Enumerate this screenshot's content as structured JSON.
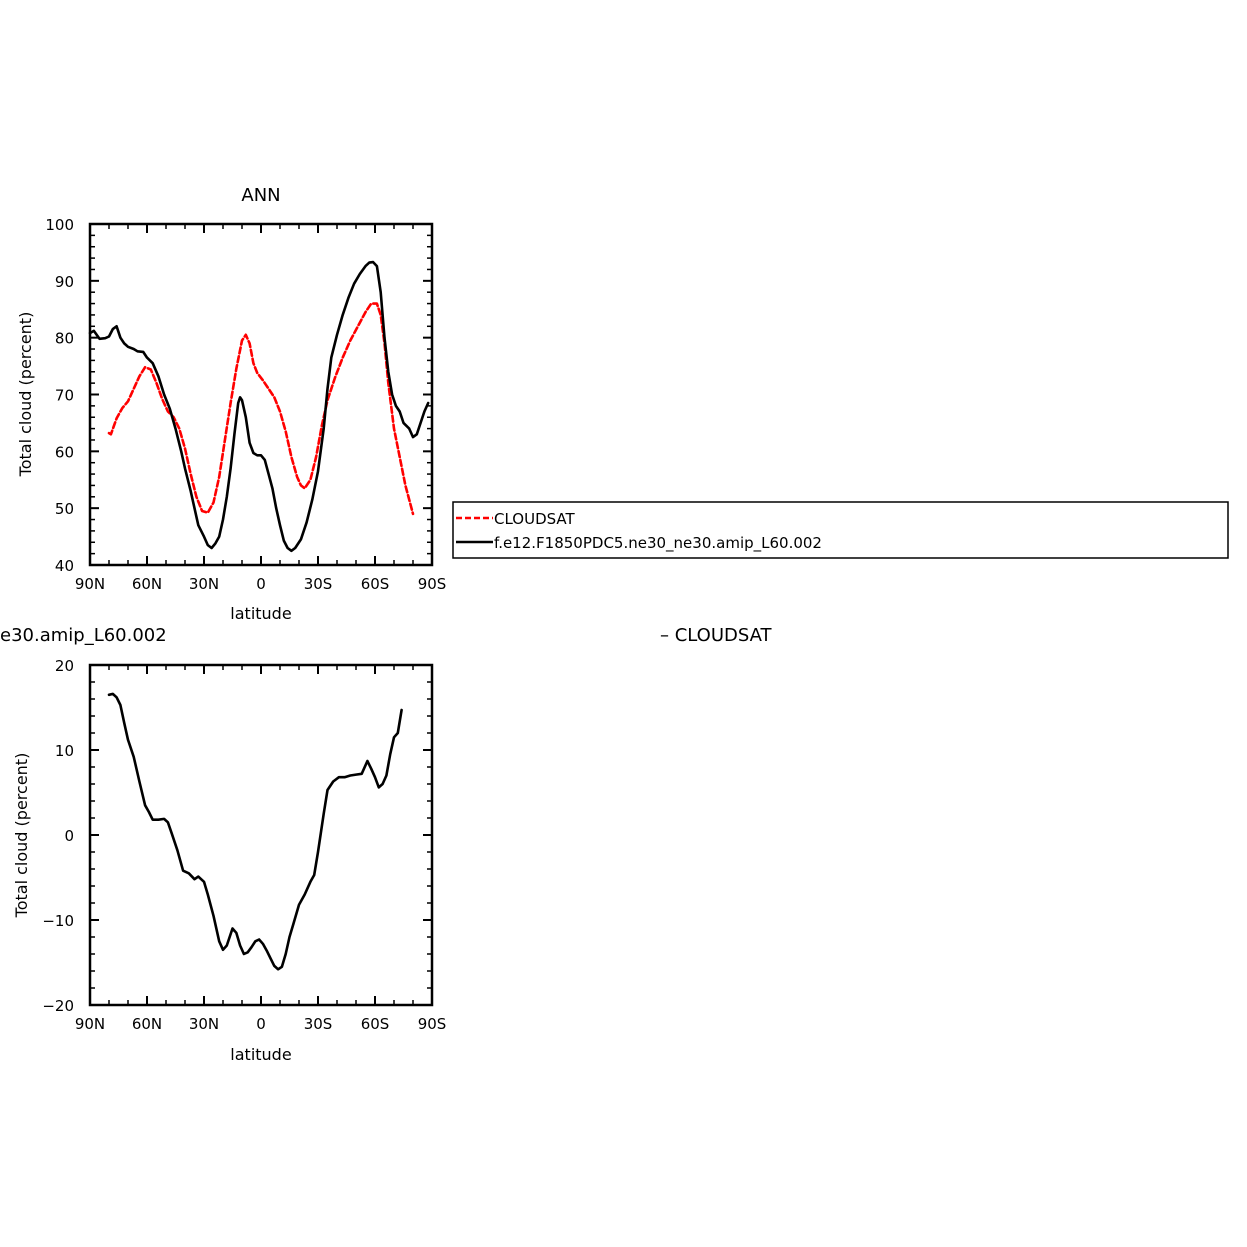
{
  "colors": {
    "obs": "#ff0000",
    "model": "#000000",
    "frame": "#000000",
    "background": "#ffffff"
  },
  "chart_data": [
    {
      "type": "line",
      "title": "ANN",
      "xlabel": "latitude",
      "ylabel": "Total cloud (percent)",
      "xlim": [
        90,
        -90
      ],
      "ylim": [
        40,
        100
      ],
      "x_ticks": [
        {
          "value": 90,
          "label": "90N"
        },
        {
          "value": 60,
          "label": "60N"
        },
        {
          "value": 30,
          "label": "30N"
        },
        {
          "value": 0,
          "label": "0"
        },
        {
          "value": -30,
          "label": "30S"
        },
        {
          "value": -60,
          "label": "60S"
        },
        {
          "value": -90,
          "label": "90S"
        }
      ],
      "y_ticks": [
        {
          "value": 100,
          "label": "100"
        },
        {
          "value": 90,
          "label": "90"
        },
        {
          "value": 80,
          "label": "80"
        },
        {
          "value": 70,
          "label": "70"
        },
        {
          "value": 60,
          "label": "60"
        },
        {
          "value": 50,
          "label": "50"
        },
        {
          "value": 40,
          "label": "40"
        }
      ],
      "legend": {
        "placement": "right",
        "entries": [
          "CLOUDSAT",
          "f.e12.F1850PDC5.ne30_ne30.amip_L60.002"
        ]
      },
      "series": [
        {
          "name": "CLOUDSAT",
          "style": "dashed",
          "color": "#ff0000",
          "points": [
            [
              80,
              63.2
            ],
            [
              79,
              63
            ],
            [
              76,
              65.8
            ],
            [
              73,
              67.6
            ],
            [
              70,
              68.8
            ],
            [
              67,
              71
            ],
            [
              64,
              73.2
            ],
            [
              61,
              74.8
            ],
            [
              58,
              74.4
            ],
            [
              55,
              72
            ],
            [
              52,
              69.2
            ],
            [
              49,
              67
            ],
            [
              46,
              66
            ],
            [
              43,
              64
            ],
            [
              40,
              60.5
            ],
            [
              37,
              56
            ],
            [
              34,
              52
            ],
            [
              31,
              49.5
            ],
            [
              28,
              49.2
            ],
            [
              25,
              51
            ],
            [
              22,
              55.5
            ],
            [
              19,
              62
            ],
            [
              16,
              68.5
            ],
            [
              13,
              74.5
            ],
            [
              10,
              79.5
            ],
            [
              8,
              80.5
            ],
            [
              6,
              79
            ],
            [
              4,
              75.5
            ],
            [
              2,
              73.8
            ],
            [
              -1,
              72.5
            ],
            [
              -4,
              71
            ],
            [
              -7,
              69.5
            ],
            [
              -10,
              67
            ],
            [
              -13,
              63.5
            ],
            [
              -16,
              59
            ],
            [
              -19,
              55.5
            ],
            [
              -21,
              54
            ],
            [
              -23,
              53.5
            ],
            [
              -26,
              55
            ],
            [
              -29,
              59
            ],
            [
              -32,
              64.5
            ],
            [
              -35,
              69
            ],
            [
              -39,
              73
            ],
            [
              -43,
              76.5
            ],
            [
              -47,
              79.5
            ],
            [
              -51,
              82
            ],
            [
              -55,
              84.5
            ],
            [
              -58,
              86
            ],
            [
              -61,
              86
            ],
            [
              -63,
              84
            ],
            [
              -65,
              79
            ],
            [
              -67,
              72
            ],
            [
              -70,
              64
            ],
            [
              -73,
              59
            ],
            [
              -76,
              54
            ],
            [
              -80,
              49
            ]
          ]
        },
        {
          "name": "f.e12.F1850PDC5.ne30_ne30.amip_L60.002",
          "style": "solid",
          "color": "#000000",
          "points": [
            [
              90,
              80.8
            ],
            [
              88,
              81.2
            ],
            [
              85,
              79.8
            ],
            [
              82,
              79.9
            ],
            [
              80,
              80.2
            ],
            [
              78,
              81.5
            ],
            [
              76,
              82
            ],
            [
              74,
              80
            ],
            [
              72,
              79
            ],
            [
              70,
              78.4
            ],
            [
              67,
              78
            ],
            [
              65,
              77.6
            ],
            [
              62,
              77.5
            ],
            [
              60,
              76.5
            ],
            [
              57,
              75.5
            ],
            [
              54,
              73.2
            ],
            [
              51,
              70
            ],
            [
              48,
              67.5
            ],
            [
              45,
              64
            ],
            [
              42,
              60
            ],
            [
              40,
              57
            ],
            [
              37,
              53
            ],
            [
              35,
              50
            ],
            [
              33,
              47
            ],
            [
              30,
              45
            ],
            [
              28,
              43.5
            ],
            [
              26,
              43
            ],
            [
              24,
              43.8
            ],
            [
              22,
              45
            ],
            [
              20,
              48
            ],
            [
              18,
              52
            ],
            [
              16,
              57
            ],
            [
              14,
              63
            ],
            [
              12,
              68.5
            ],
            [
              11,
              69.5
            ],
            [
              10,
              69
            ],
            [
              8,
              66
            ],
            [
              6,
              61.5
            ],
            [
              4,
              59.7
            ],
            [
              2,
              59.3
            ],
            [
              0,
              59.3
            ],
            [
              -2,
              58.5
            ],
            [
              -4,
              56
            ],
            [
              -6,
              53.5
            ],
            [
              -8,
              50
            ],
            [
              -10,
              47
            ],
            [
              -12,
              44.3
            ],
            [
              -14,
              43
            ],
            [
              -16,
              42.5
            ],
            [
              -18,
              43
            ],
            [
              -21,
              44.5
            ],
            [
              -24,
              47.5
            ],
            [
              -27,
              51.5
            ],
            [
              -30,
              56.5
            ],
            [
              -33,
              64
            ],
            [
              -35,
              71
            ],
            [
              -37,
              76.5
            ],
            [
              -40,
              80.5
            ],
            [
              -43,
              84
            ],
            [
              -46,
              87
            ],
            [
              -49,
              89.5
            ],
            [
              -52,
              91.2
            ],
            [
              -55,
              92.6
            ],
            [
              -57,
              93.2
            ],
            [
              -59,
              93.3
            ],
            [
              -61,
              92.6
            ],
            [
              -63,
              88
            ],
            [
              -65,
              80
            ],
            [
              -67,
              74
            ],
            [
              -69,
              70
            ],
            [
              -71,
              68
            ],
            [
              -73,
              67
            ],
            [
              -75,
              65
            ],
            [
              -78,
              64
            ],
            [
              -80,
              62.5
            ],
            [
              -82,
              63
            ],
            [
              -84,
              65
            ],
            [
              -86,
              67
            ],
            [
              -88,
              68.5
            ]
          ]
        }
      ]
    },
    {
      "type": "line",
      "title": "e30.amip_L60.002",
      "title_right": "– CLOUDSAT",
      "xlabel": "latitude",
      "ylabel": "Total cloud (percent)",
      "xlim": [
        90,
        -90
      ],
      "ylim": [
        -20,
        20
      ],
      "x_ticks": [
        {
          "value": 90,
          "label": "90N"
        },
        {
          "value": 60,
          "label": "60N"
        },
        {
          "value": 30,
          "label": "30N"
        },
        {
          "value": 0,
          "label": "0"
        },
        {
          "value": -30,
          "label": "30S"
        },
        {
          "value": -60,
          "label": "60S"
        },
        {
          "value": -90,
          "label": "90S"
        }
      ],
      "y_ticks": [
        {
          "value": 20,
          "label": "20"
        },
        {
          "value": 10,
          "label": "10"
        },
        {
          "value": 0,
          "label": "0"
        },
        {
          "value": -10,
          "label": "−10"
        },
        {
          "value": -20,
          "label": "−20"
        }
      ],
      "series": [
        {
          "style": "solid",
          "color": "#000000",
          "points": [
            [
              80,
              16.5
            ],
            [
              78,
              16.6
            ],
            [
              76,
              16.2
            ],
            [
              74,
              15.3
            ],
            [
              72,
              13.2
            ],
            [
              70,
              11.2
            ],
            [
              67,
              9.2
            ],
            [
              64,
              6.3
            ],
            [
              61,
              3.5
            ],
            [
              59,
              2.7
            ],
            [
              57,
              1.8
            ],
            [
              54,
              1.8
            ],
            [
              51,
              1.9
            ],
            [
              49,
              1.5
            ],
            [
              47,
              0.2
            ],
            [
              44,
              -1.8
            ],
            [
              41,
              -4.2
            ],
            [
              38,
              -4.5
            ],
            [
              35,
              -5.2
            ],
            [
              33,
              -4.9
            ],
            [
              30,
              -5.5
            ],
            [
              28,
              -7
            ],
            [
              25,
              -9.5
            ],
            [
              22,
              -12.5
            ],
            [
              20,
              -13.5
            ],
            [
              18,
              -13
            ],
            [
              15,
              -11
            ],
            [
              13,
              -11.5
            ],
            [
              11,
              -13
            ],
            [
              9,
              -14
            ],
            [
              7,
              -13.8
            ],
            [
              5,
              -13.2
            ],
            [
              3,
              -12.5
            ],
            [
              1,
              -12.3
            ],
            [
              -1,
              -12.8
            ],
            [
              -3,
              -13.6
            ],
            [
              -5,
              -14.5
            ],
            [
              -7,
              -15.4
            ],
            [
              -9,
              -15.8
            ],
            [
              -11,
              -15.5
            ],
            [
              -13,
              -14
            ],
            [
              -15,
              -12
            ],
            [
              -17,
              -10.5
            ],
            [
              -20,
              -8.2
            ],
            [
              -23,
              -7
            ],
            [
              -26,
              -5.5
            ],
            [
              -28,
              -4.7
            ],
            [
              -30,
              -2
            ],
            [
              -33,
              2.5
            ],
            [
              -35,
              5.3
            ],
            [
              -38,
              6.3
            ],
            [
              -41,
              6.8
            ],
            [
              -44,
              6.8
            ],
            [
              -47,
              7
            ],
            [
              -50,
              7.1
            ],
            [
              -53,
              7.2
            ],
            [
              -56,
              8.7
            ],
            [
              -58,
              7.8
            ],
            [
              -60,
              6.8
            ],
            [
              -62,
              5.6
            ],
            [
              -64,
              6
            ],
            [
              -66,
              7
            ],
            [
              -68,
              9.5
            ],
            [
              -70,
              11.5
            ],
            [
              -72,
              12
            ],
            [
              -74,
              14.7
            ]
          ]
        }
      ]
    }
  ]
}
